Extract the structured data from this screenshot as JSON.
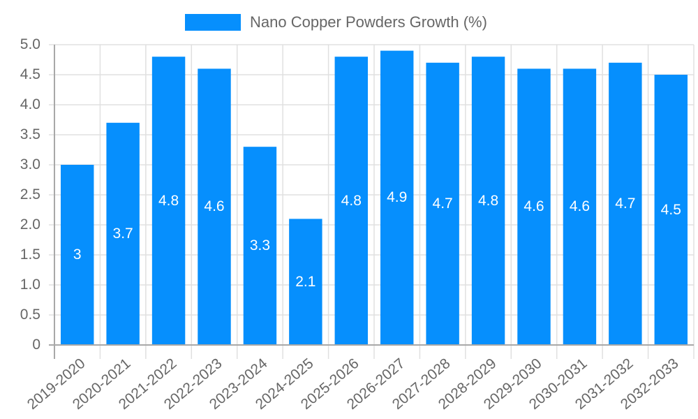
{
  "chart_data": {
    "type": "bar",
    "title": "",
    "xlabel": "",
    "ylabel": "",
    "ylim": [
      0,
      5.0
    ],
    "y_ticks": [
      "0",
      "0.5",
      "1.0",
      "1.5",
      "2.0",
      "2.5",
      "3.0",
      "3.5",
      "4.0",
      "4.5",
      "5.0"
    ],
    "grid": true,
    "legend_position": "top",
    "categories": [
      "2019-2020",
      "2020-2021",
      "2021-2022",
      "2022-2023",
      "2023-2024",
      "2024-2025",
      "2025-2026",
      "2026-2027",
      "2027-2028",
      "2028-2029",
      "2029-2030",
      "2030-2031",
      "2031-2032",
      "2032-2033"
    ],
    "series": [
      {
        "name": "Nano Copper Powders Growth (%)",
        "color": "#068ffd",
        "values": [
          3,
          3.7,
          4.8,
          4.6,
          3.3,
          2.1,
          4.8,
          4.9,
          4.7,
          4.8,
          4.6,
          4.6,
          4.7,
          4.5
        ],
        "labels": [
          "3",
          "3.7",
          "4.8",
          "4.6",
          "3.3",
          "2.1",
          "4.8",
          "4.9",
          "4.7",
          "4.8",
          "4.6",
          "4.6",
          "4.7",
          "4.5"
        ]
      }
    ]
  },
  "legend": {
    "label": "Nano Copper Powders Growth (%)",
    "color": "#068ffd"
  },
  "colors": {
    "bar": "#068ffd",
    "grid": "#e0e0e0",
    "axis": "#a8a8a8",
    "text": "#666666",
    "bar_label": "#ffffff"
  }
}
